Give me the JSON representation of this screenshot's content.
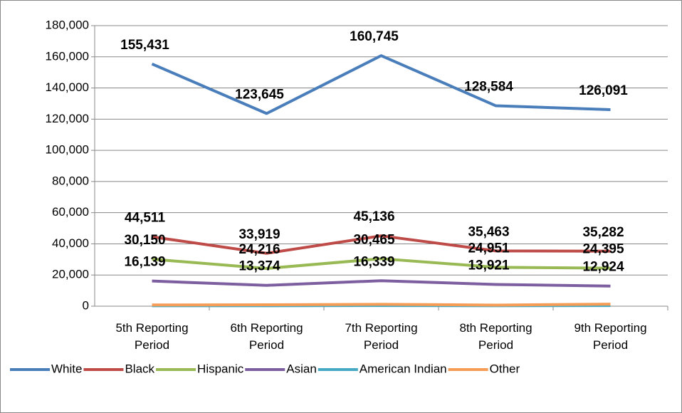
{
  "chart_data": {
    "type": "line",
    "categories": [
      "5th Reporting Period",
      "6th Reporting Period",
      "7th Reporting Period",
      "8th Reporting Period",
      "9th Reporting Period"
    ],
    "series": [
      {
        "name": "White",
        "color": "#4a7ebb",
        "values": [
          155431,
          123645,
          160745,
          128584,
          126091
        ],
        "value_labels": [
          "155,431",
          "123,645",
          "160,745",
          "128,584",
          "126,091"
        ]
      },
      {
        "name": "Black",
        "color": "#be4b48",
        "values": [
          44511,
          33919,
          45136,
          35463,
          35282
        ],
        "value_labels": [
          "44,511",
          "33,919",
          "45,136",
          "35,463",
          "35,282"
        ]
      },
      {
        "name": "Hispanic",
        "color": "#98b954",
        "values": [
          30150,
          24216,
          30465,
          24951,
          24395
        ],
        "value_labels": [
          "30,150",
          "24,216",
          "30,465",
          "24,951",
          "24,395"
        ]
      },
      {
        "name": "Asian",
        "color": "#7d5fa0",
        "values": [
          16139,
          13374,
          16339,
          13921,
          12924
        ],
        "value_labels": [
          "16,139",
          "13,374",
          "16,339",
          "13,921",
          "12,924"
        ]
      },
      {
        "name": "American Indian",
        "color": "#46aac5",
        "values": [
          300,
          300,
          400,
          300,
          400
        ]
      },
      {
        "name": "Other",
        "color": "#f59d56",
        "values": [
          800,
          900,
          1200,
          700,
          1300
        ]
      }
    ],
    "ylim": [
      0,
      180000
    ],
    "yticks": [
      0,
      {
        "value": 20000,
        "label": "20,000"
      },
      {
        "value": 40000,
        "label": "40,000"
      },
      {
        "value": 60000,
        "label": "60,000"
      },
      {
        "value": 80000,
        "label": "80,000"
      },
      {
        "value": 100000,
        "label": "100,000"
      },
      {
        "value": 120000,
        "label": "120,000"
      },
      {
        "value": 140000,
        "label": "140,000"
      },
      {
        "value": 160000,
        "label": "160,000"
      },
      {
        "value": 180000,
        "label": "180,000"
      }
    ],
    "grid": true,
    "legend": "bottom"
  }
}
